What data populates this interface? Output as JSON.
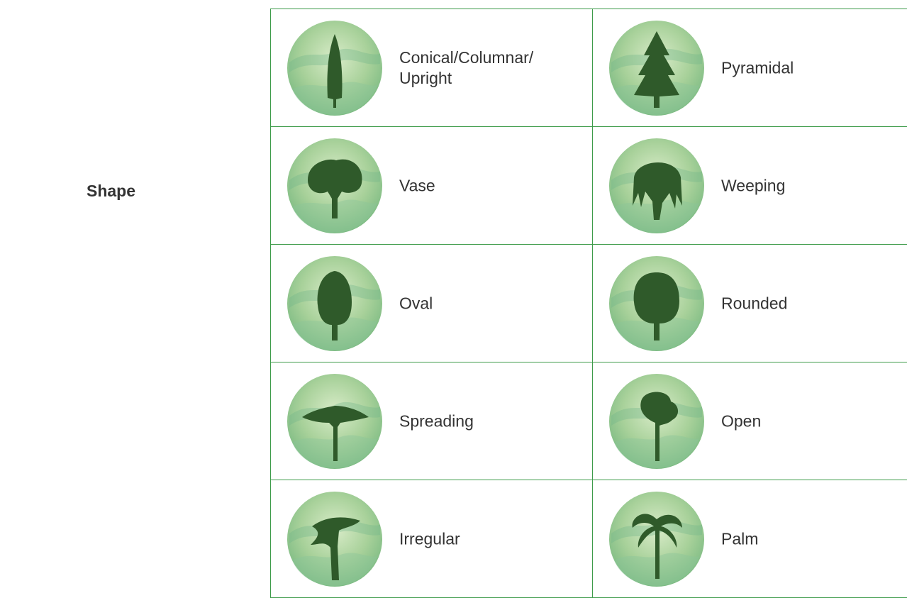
{
  "label": "Shape",
  "cells": [
    {
      "text": "Conical/Columnar/\nUpright"
    },
    {
      "text": "Pyramidal"
    },
    {
      "text": "Vase"
    },
    {
      "text": "Weeping"
    },
    {
      "text": "Oval"
    },
    {
      "text": "Rounded"
    },
    {
      "text": "Spreading"
    },
    {
      "text": "Open"
    },
    {
      "text": "Irregular"
    },
    {
      "text": "Palm"
    }
  ]
}
